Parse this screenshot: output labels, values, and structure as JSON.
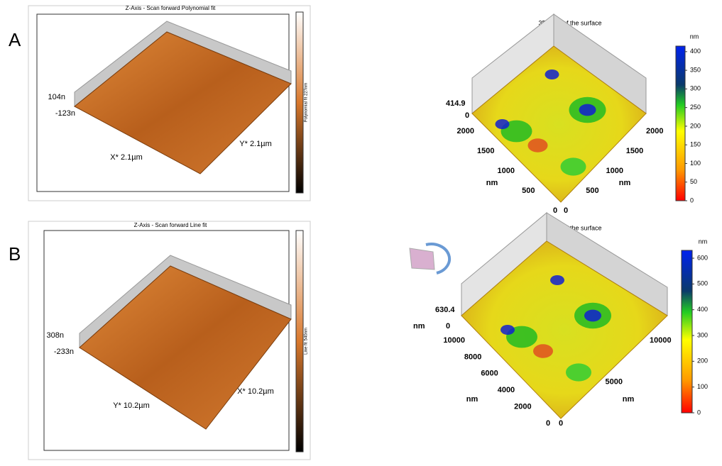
{
  "panels": [
    {
      "label": "A",
      "afm": {
        "title": "Z-Axis - Scan forward   Polynomial fit",
        "z_max": "104n",
        "z_min": "-123n",
        "x_label": "X* 2.1µm",
        "y_label": "Y* 2.1µm",
        "colorbar_label": "Polynomial fit 227nm"
      },
      "view3d": {
        "title": "3D view of the surface",
        "z_max": 414.9,
        "z_min": 0,
        "left_ticks": [
          0,
          500,
          1000,
          1500,
          2000
        ],
        "right_ticks": [
          0,
          500,
          1000,
          1500,
          2000
        ],
        "left_unit": "nm",
        "right_unit": "nm",
        "colorbar_unit": "nm",
        "colorbar_ticks": [
          0,
          50,
          100,
          150,
          200,
          250,
          300,
          350,
          400
        ]
      }
    },
    {
      "label": "B",
      "afm": {
        "title": "Z-Axis - Scan forward   Line fit",
        "z_max": "308n",
        "z_min": "-233n",
        "x_label": "X* 10.2µm",
        "y_label": "Y* 10.2µm",
        "colorbar_label": "Line fit 540nm"
      },
      "view3d": {
        "title": "3D view of the surface",
        "z_max": 630.4,
        "z_unit": "nm",
        "z_min": 0,
        "left_ticks": [
          0,
          2000,
          4000,
          6000,
          8000,
          10000
        ],
        "right_ticks": [
          0,
          5000,
          10000
        ],
        "left_unit": "nm",
        "right_unit": "nm",
        "colorbar_unit": "nm",
        "colorbar_ticks": [
          0,
          100,
          200,
          300,
          400,
          500,
          600
        ]
      }
    }
  ]
}
